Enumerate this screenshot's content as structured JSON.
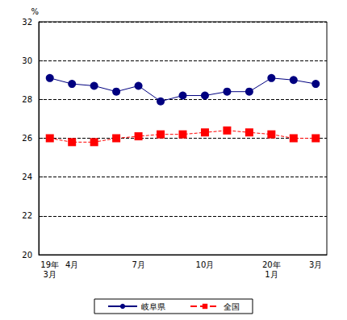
{
  "chart_data": {
    "type": "line",
    "y_label": "%",
    "categories": [
      "19年\n3月",
      "4月",
      null,
      null,
      "7月",
      null,
      null,
      "10月",
      null,
      null,
      "20年\n1月",
      null,
      "3月"
    ],
    "series": [
      {
        "name": "岐阜県",
        "color": "#000080",
        "marker": "circle",
        "line_style": "solid",
        "values": [
          29.1,
          28.8,
          28.7,
          28.4,
          28.7,
          27.9,
          28.2,
          28.2,
          28.4,
          28.4,
          29.1,
          29.0,
          28.8
        ]
      },
      {
        "name": "全国",
        "color": "#ff0000",
        "marker": "square",
        "line_style": "dashed",
        "values": [
          26.0,
          25.8,
          25.8,
          26.0,
          26.1,
          26.2,
          26.2,
          26.3,
          26.4,
          26.3,
          26.2,
          26.0,
          26.0
        ]
      }
    ],
    "ylim": [
      20,
      32
    ],
    "yticks": [
      20,
      22,
      24,
      26,
      28,
      30,
      32
    ],
    "grid": true,
    "legend": "bottom"
  }
}
